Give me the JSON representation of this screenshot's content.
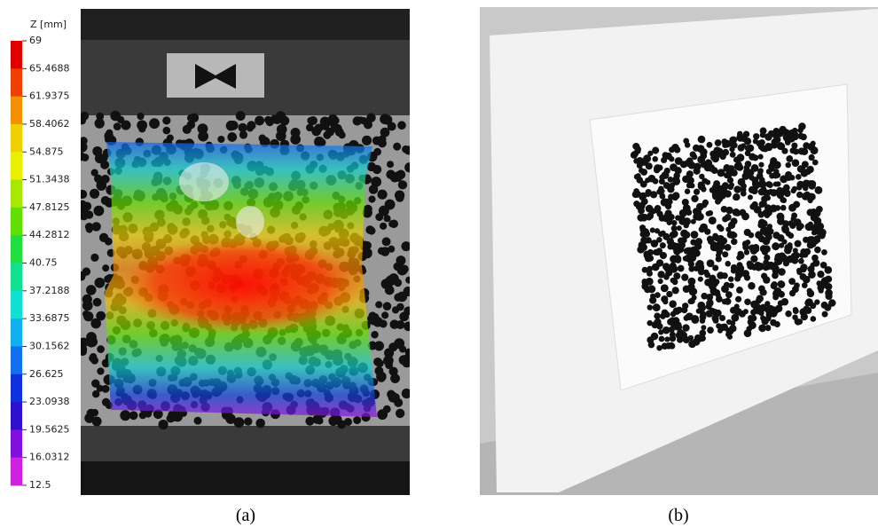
{
  "colorbar": {
    "title": "Z [mm]",
    "labels": [
      "69",
      "65.4688",
      "61.9375",
      "58.4062",
      "54.875",
      "51.3438",
      "47.8125",
      "44.2812",
      "40.75",
      "37.2188",
      "33.6875",
      "30.1562",
      "26.625",
      "23.0938",
      "19.5625",
      "16.0312",
      "12.5"
    ],
    "colors": [
      "#e00000",
      "#f04000",
      "#f59000",
      "#f0d000",
      "#e8f000",
      "#a8e800",
      "#60e000",
      "#20e040",
      "#10e090",
      "#10e0d0",
      "#10b0f0",
      "#1070f0",
      "#1030e0",
      "#3010d0",
      "#8010e0",
      "#d020e0"
    ]
  },
  "captions": {
    "a": "(a)",
    "b": "(b)"
  }
}
